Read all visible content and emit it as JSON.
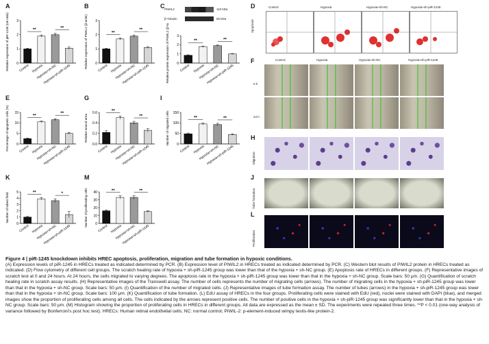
{
  "panels": {
    "A": {
      "letter": "A",
      "ylabel": "Relative expression of piR-1245 (U6 ratio)",
      "categories": [
        "Control",
        "Hypoxia",
        "Hypoxia+sh-NC",
        "Hypoxia+sh-piR-1245"
      ],
      "values": [
        1.0,
        1.9,
        2.0,
        1.05
      ],
      "errors": [
        0.05,
        0.08,
        0.1,
        0.08
      ],
      "ylim": [
        0,
        3
      ],
      "ticks": [
        "0",
        "1",
        "2",
        "3"
      ],
      "sig": [
        "**",
        "**"
      ]
    },
    "B": {
      "letter": "B",
      "ylabel": "Relative expression of PIWIL2 (β-actin)",
      "categories": [
        "Control",
        "Hypoxia",
        "Hypoxia+sh-NC",
        "Hypoxia+sh-piR-1245"
      ],
      "values": [
        1.0,
        1.7,
        1.9,
        1.1
      ],
      "errors": [
        0.05,
        0.07,
        0.08,
        0.06
      ],
      "ylim": [
        0,
        3
      ],
      "ticks": [
        "0",
        "1",
        "2",
        "3"
      ],
      "sig": [
        "**",
        "**"
      ]
    },
    "C": {
      "letter": "C",
      "ylabel": "Relative protein expression of PIWIL2 (β-tubulin)",
      "categories": [
        "Control",
        "Hypoxia",
        "Hypoxia+sh-NC",
        "Hypoxia+sh-piR-1245"
      ],
      "values": [
        0.85,
        1.8,
        1.9,
        1.0
      ],
      "errors": [
        0.05,
        0.06,
        0.07,
        0.05
      ],
      "ylim": [
        0,
        3
      ],
      "ticks": [
        "0",
        "1",
        "2",
        "3"
      ],
      "sig": [
        "**",
        "**"
      ],
      "blot_rows": [
        {
          "name": "PIWIL2",
          "size": "110 kDa"
        },
        {
          "name": "β-Tubulin",
          "size": "55 kDa"
        }
      ]
    },
    "D": {
      "letter": "D",
      "row_label": "Apoptosis",
      "columns": [
        "Control",
        "Hypoxia",
        "Hypoxia+sh-NC",
        "Hypoxia+sh-piR-1245"
      ]
    },
    "E": {
      "letter": "E",
      "ylabel": "Percentage of apoptotic cells (%)",
      "categories": [
        "Control",
        "Hypoxia",
        "Hypoxia+sh-NC",
        "Hypoxia+sh-piR-1245"
      ],
      "values": [
        2.5,
        10.5,
        11.5,
        5.0
      ],
      "errors": [
        0.3,
        0.4,
        0.5,
        0.4
      ],
      "ylim": [
        0,
        15
      ],
      "ticks": [
        "0",
        "5",
        "10",
        "15"
      ],
      "sig": [
        "**",
        "**"
      ]
    },
    "F": {
      "letter": "F",
      "columns": [
        "Control",
        "Hypoxia",
        "Hypoxia+sh-NC",
        "Hypoxia+sh-piR-1245"
      ],
      "rows": [
        "0 h",
        "24 h"
      ]
    },
    "G": {
      "letter": "G",
      "ylabel": "Relative wound area",
      "categories": [
        "Control",
        "Hypoxia",
        "Hypoxia+sh-NC",
        "Hypoxia+sh-piR-1245"
      ],
      "values": [
        0.22,
        0.5,
        0.4,
        0.26
      ],
      "errors": [
        0.03,
        0.03,
        0.03,
        0.03
      ],
      "ylim": [
        0,
        0.6
      ],
      "ticks": [
        "0.0",
        "0.2",
        "0.4",
        "0.6"
      ],
      "sig": [
        "**",
        "**"
      ]
    },
    "H": {
      "letter": "H",
      "row_label": "Migration"
    },
    "I": {
      "letter": "I",
      "ylabel": "Number of migrated cells",
      "categories": [
        "Control",
        "Hypoxia",
        "Hypoxia+sh-NC",
        "Hypoxia+sh-piR-1245"
      ],
      "values": [
        48,
        95,
        92,
        45
      ],
      "errors": [
        4,
        5,
        6,
        3
      ],
      "ylim": [
        0,
        150
      ],
      "ticks": [
        "0",
        "50",
        "100",
        "150"
      ],
      "sig": [
        "**",
        "**"
      ]
    },
    "J": {
      "letter": "J",
      "row_label": "Tube formation"
    },
    "K": {
      "letter": "K",
      "ylabel": "Number of tubes/ field",
      "categories": [
        "Control",
        "Hypoxia",
        "Hypoxia+sh-NC",
        "Hypoxia+sh-piR-1245"
      ],
      "values": [
        1.0,
        3.9,
        3.6,
        1.4
      ],
      "errors": [
        0.1,
        0.2,
        0.3,
        0.5
      ],
      "ylim": [
        0,
        5
      ],
      "ticks": [
        "0",
        "1",
        "2",
        "3",
        "4",
        "5"
      ],
      "sig": [
        "**",
        "*"
      ]
    },
    "L": {
      "letter": "L",
      "row_label": "Proliferation"
    },
    "M": {
      "letter": "M",
      "ylabel": "Number of proliferating cells",
      "categories": [
        "Control",
        "Hypoxia",
        "Hypoxia+sh-NC",
        "Hypoxia+sh-piR-1245"
      ],
      "values": [
        16,
        33,
        33,
        15
      ],
      "errors": [
        1,
        2,
        2,
        1
      ],
      "ylim": [
        0,
        40
      ],
      "ticks": [
        "0",
        "10",
        "20",
        "30",
        "40"
      ],
      "sig": [
        "**",
        "**"
      ]
    }
  },
  "bar_colors": [
    "#111111",
    "#f2f2f2",
    "#9a9a9a",
    "#d6d6d6"
  ],
  "caption": {
    "title": "Figure 4 | piR-1245 knockdown inhibits HREC apoptosis, proliferation, migration and tube formation in hypoxic conditions.",
    "body": "(A) Expression levels of piR-1245 in HRECs treated as indicated determined by PCR. (B) Expression level of PIWIL2 in HRECs treated as indicated determined by PCR. (C) Western blot results of PIWIL2 protein in HRECs treated as indicated. (D) Flow cytometry of different cell groups. The scratch healing rate of hypoxia + sh-piR-1245 group was lower than that of the hypoxia + sh-NC group. (E) Apoptosis rate of HRECs in different groups. (F) Representative images of scratch test at 0 and 24 hours. At 24 hours, the cells migrated to varying degrees. The apoptosis rate in the hypoxia + sh-piR-1245 group was lower than that in the hypoxia + sh-NC group. Scale bars: 50 μm. (G) Quantification of scratch healing rate in scratch assay results. (H) Representative images of the Transwell assay. The number of cells represents the number of migrating cells (arrows). The number of migrating cells in the hypoxia + sh-piR-1245 group was lower than that in the hypoxia + sh-NC group. Scale bars: 50 μm. (I) Quantification of the number of migrated cells. (J) Representative images of tube formation assay. The number of tubes (arrows) in the hypoxia + sh-piR-1245 group was lower than that in the hypoxia + sh-NC group. Scale bars: 100 μm. (K) Quantification of tube formation. (L) EdU assay of HRECs in the four groups. Proliferating cells were stained with EdU (red), nuclei were stained with DAPI (blue), and merged images show the proportion of proliferating cells among all cells. The cells indicated by the arrows represent positive cells. The number of positive cells in the hypoxia + sh-piR-1245 group was significantly lower than that in the hypoxia + sh-NC group. Scale bars: 50 μm. (M) Histogram showing the proportion of proliferating cells in HRECs in different groups. All data are expressed as the mean ± SD. The experiments were repeated three times. **P < 0.01 (one-way analysis of variance followed by Bonferroni's post hoc test). HRECs: Human retinal endothelial cells; NC: normal control; PIWIL-2: p-element-induced wimpy testis-like protein-2."
  },
  "chart_data": [
    {
      "type": "bar",
      "panel": "A",
      "categories": [
        "Control",
        "Hypoxia",
        "Hypoxia+sh-NC",
        "Hypoxia+sh-piR-1245"
      ],
      "values": [
        1.0,
        1.9,
        2.0,
        1.05
      ],
      "ylabel": "Relative expression of piR-1245 (U6 ratio)",
      "ylim": [
        0,
        3
      ]
    },
    {
      "type": "bar",
      "panel": "B",
      "categories": [
        "Control",
        "Hypoxia",
        "Hypoxia+sh-NC",
        "Hypoxia+sh-piR-1245"
      ],
      "values": [
        1.0,
        1.7,
        1.9,
        1.1
      ],
      "ylabel": "Relative expression of PIWIL2 (β-actin)",
      "ylim": [
        0,
        3
      ]
    },
    {
      "type": "bar",
      "panel": "C",
      "categories": [
        "Control",
        "Hypoxia",
        "Hypoxia+sh-NC",
        "Hypoxia+sh-piR-1245"
      ],
      "values": [
        0.85,
        1.8,
        1.9,
        1.0
      ],
      "ylabel": "Relative protein expression of PIWIL2 (β-tubulin)",
      "ylim": [
        0,
        3
      ]
    },
    {
      "type": "bar",
      "panel": "E",
      "categories": [
        "Control",
        "Hypoxia",
        "Hypoxia+sh-NC",
        "Hypoxia+sh-piR-1245"
      ],
      "values": [
        2.5,
        10.5,
        11.5,
        5.0
      ],
      "ylabel": "Percentage of apoptotic cells (%)",
      "ylim": [
        0,
        15
      ]
    },
    {
      "type": "bar",
      "panel": "G",
      "categories": [
        "Control",
        "Hypoxia",
        "Hypoxia+sh-NC",
        "Hypoxia+sh-piR-1245"
      ],
      "values": [
        0.22,
        0.5,
        0.4,
        0.26
      ],
      "ylabel": "Relative wound area",
      "ylim": [
        0,
        0.6
      ]
    },
    {
      "type": "bar",
      "panel": "I",
      "categories": [
        "Control",
        "Hypoxia",
        "Hypoxia+sh-NC",
        "Hypoxia+sh-piR-1245"
      ],
      "values": [
        48,
        95,
        92,
        45
      ],
      "ylabel": "Number of migrated cells",
      "ylim": [
        0,
        150
      ]
    },
    {
      "type": "bar",
      "panel": "K",
      "categories": [
        "Control",
        "Hypoxia",
        "Hypoxia+sh-NC",
        "Hypoxia+sh-piR-1245"
      ],
      "values": [
        1.0,
        3.9,
        3.6,
        1.4
      ],
      "ylabel": "Number of tubes/ field",
      "ylim": [
        0,
        5
      ]
    },
    {
      "type": "bar",
      "panel": "M",
      "categories": [
        "Control",
        "Hypoxia",
        "Hypoxia+sh-NC",
        "Hypoxia+sh-piR-1245"
      ],
      "values": [
        16,
        33,
        33,
        15
      ],
      "ylabel": "Number of proliferating cells",
      "ylim": [
        0,
        40
      ]
    }
  ]
}
